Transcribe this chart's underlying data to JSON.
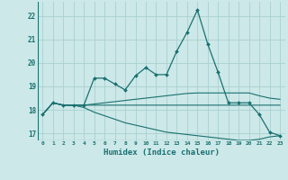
{
  "xlabel": "Humidex (Indice chaleur)",
  "xlim": [
    -0.5,
    23.5
  ],
  "ylim": [
    16.7,
    22.6
  ],
  "yticks": [
    17,
    18,
    19,
    20,
    21,
    22
  ],
  "xticks": [
    0,
    1,
    2,
    3,
    4,
    5,
    6,
    7,
    8,
    9,
    10,
    11,
    12,
    13,
    14,
    15,
    16,
    17,
    18,
    19,
    20,
    21,
    22,
    23
  ],
  "background_color": "#cce8e8",
  "grid_color": "#aad0d0",
  "line_color": "#1a7070",
  "line1": [
    17.8,
    18.3,
    18.2,
    18.2,
    18.2,
    19.35,
    19.35,
    19.1,
    18.85,
    19.45,
    19.8,
    19.5,
    19.5,
    20.5,
    21.3,
    22.25,
    20.8,
    19.6,
    18.3,
    18.3,
    18.3,
    17.8,
    17.05,
    16.9
  ],
  "line2": [
    17.8,
    18.3,
    18.2,
    18.2,
    18.2,
    18.25,
    18.3,
    18.35,
    18.4,
    18.45,
    18.5,
    18.55,
    18.6,
    18.65,
    18.7,
    18.72,
    18.72,
    18.72,
    18.72,
    18.72,
    18.72,
    18.6,
    18.5,
    18.45
  ],
  "line3": [
    17.8,
    18.3,
    18.2,
    18.2,
    18.2,
    18.2,
    18.2,
    18.2,
    18.2,
    18.2,
    18.2,
    18.2,
    18.2,
    18.2,
    18.2,
    18.2,
    18.2,
    18.2,
    18.2,
    18.2,
    18.2,
    18.2,
    18.2,
    18.2
  ],
  "line4": [
    17.8,
    18.3,
    18.2,
    18.2,
    18.1,
    17.9,
    17.75,
    17.6,
    17.45,
    17.35,
    17.25,
    17.15,
    17.05,
    17.0,
    16.95,
    16.9,
    16.85,
    16.8,
    16.75,
    16.7,
    16.7,
    16.75,
    16.85,
    16.9
  ]
}
